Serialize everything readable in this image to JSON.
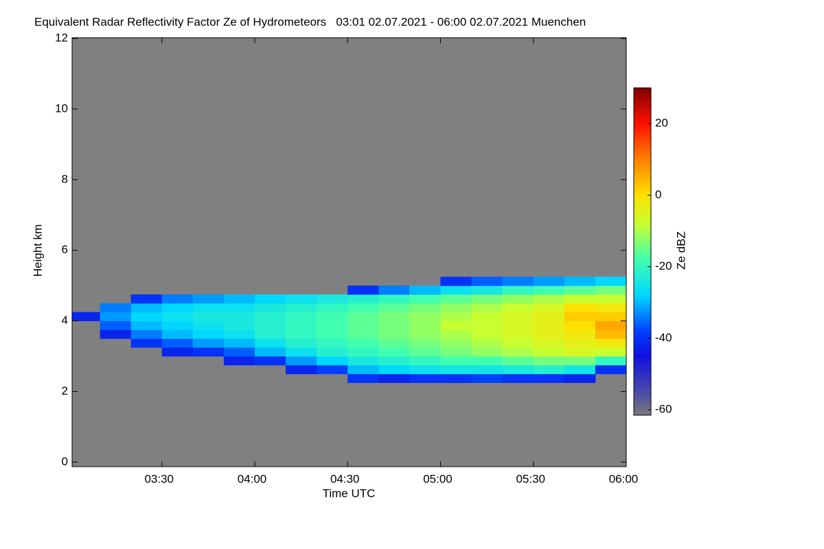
{
  "chart_data": {
    "type": "heatmap",
    "title": "Equivalent Radar Reflectivity Factor Ze of Hydrometeors   03:01 02.07.2021 - 06:00 02.07.2021 Muenchen",
    "xlabel": "Time UTC",
    "ylabel": "Height km",
    "colorbar_label": "Ze dBZ",
    "xlim": [
      3.0167,
      6.0
    ],
    "xticks": [
      {
        "value": 3.5,
        "label": "03:30"
      },
      {
        "value": 4.0,
        "label": "04:00"
      },
      {
        "value": 4.5,
        "label": "04:30"
      },
      {
        "value": 5.0,
        "label": "05:00"
      },
      {
        "value": 5.5,
        "label": "05:30"
      },
      {
        "value": 6.0,
        "label": "06:00"
      }
    ],
    "ylim": [
      -0.13,
      12.02
    ],
    "yticks": [
      0,
      2,
      4,
      6,
      8,
      10,
      12
    ],
    "clim": [
      -61.5,
      30
    ],
    "cticks": [
      -60,
      -40,
      -20,
      0,
      20
    ],
    "background": "#808080",
    "colormap": [
      {
        "value": -61.5,
        "color": "#7a7a7a"
      },
      {
        "value": -55,
        "color": "#4a4aa8"
      },
      {
        "value": -45,
        "color": "#1010e0"
      },
      {
        "value": -38,
        "color": "#0040ff"
      },
      {
        "value": -28,
        "color": "#00d8ff"
      },
      {
        "value": -18,
        "color": "#40ffb0"
      },
      {
        "value": -8,
        "color": "#c8ff30"
      },
      {
        "value": 0,
        "color": "#ffe000"
      },
      {
        "value": 10,
        "color": "#ff8000"
      },
      {
        "value": 20,
        "color": "#ff1000"
      },
      {
        "value": 30,
        "color": "#800000"
      }
    ],
    "x_edges": [
      3.0167,
      3.1667,
      3.3333,
      3.5,
      3.6667,
      3.8333,
      4.0,
      4.1667,
      4.3333,
      4.5,
      4.6667,
      4.8333,
      5.0,
      5.1667,
      5.3333,
      5.5,
      5.6667,
      5.8333,
      6.0
    ],
    "y_edges": [
      2.25,
      2.5,
      2.75,
      3.0,
      3.25,
      3.5,
      3.75,
      4.0,
      4.25,
      4.5,
      4.75,
      5.0,
      5.25
    ],
    "z": [
      [
        null,
        null,
        null,
        null,
        null,
        null,
        null,
        null,
        null,
        -40,
        -42,
        -40,
        -40,
        -38,
        -40,
        -40,
        -42,
        null
      ],
      [
        null,
        null,
        null,
        null,
        null,
        null,
        null,
        -42,
        -38,
        -30,
        -28,
        -26,
        -25,
        -25,
        -24,
        -22,
        -25,
        -40
      ],
      [
        null,
        null,
        null,
        null,
        null,
        -42,
        -40,
        -32,
        -28,
        -24,
        -22,
        -20,
        -18,
        -18,
        -16,
        -14,
        -14,
        -20
      ],
      [
        null,
        null,
        null,
        -42,
        -40,
        -36,
        -30,
        -26,
        -22,
        -20,
        -18,
        -16,
        -14,
        -12,
        -10,
        -8,
        -6,
        -8
      ],
      [
        null,
        null,
        -40,
        -36,
        -32,
        -30,
        -26,
        -22,
        -20,
        -18,
        -16,
        -14,
        -12,
        -10,
        -8,
        -6,
        -4,
        -2
      ],
      [
        null,
        -42,
        -34,
        -30,
        -28,
        -26,
        -22,
        -20,
        -18,
        -16,
        -14,
        -12,
        -10,
        -8,
        -6,
        -4,
        -2,
        4
      ],
      [
        null,
        -36,
        -30,
        -28,
        -26,
        -24,
        -22,
        -20,
        -18,
        -16,
        -14,
        -12,
        -8,
        -8,
        -6,
        -4,
        0,
        6
      ],
      [
        -42,
        -32,
        -28,
        -26,
        -24,
        -24,
        -22,
        -20,
        -18,
        -16,
        -14,
        -12,
        -10,
        -8,
        -6,
        -4,
        2,
        2
      ],
      [
        null,
        -34,
        -30,
        -28,
        -26,
        -26,
        -24,
        -22,
        -20,
        -18,
        -16,
        -14,
        -12,
        -10,
        -8,
        -6,
        0,
        -2
      ],
      [
        null,
        null,
        -40,
        -34,
        -32,
        -30,
        -28,
        -26,
        -24,
        -22,
        -20,
        -18,
        -16,
        -14,
        -12,
        -10,
        -8,
        -8
      ],
      [
        null,
        null,
        null,
        null,
        null,
        null,
        null,
        null,
        null,
        -40,
        -34,
        -30,
        -26,
        -24,
        -20,
        -18,
        -16,
        -14
      ],
      [
        null,
        null,
        null,
        null,
        null,
        null,
        null,
        null,
        null,
        null,
        null,
        null,
        -40,
        -36,
        -34,
        -32,
        -30,
        -28
      ]
    ]
  }
}
